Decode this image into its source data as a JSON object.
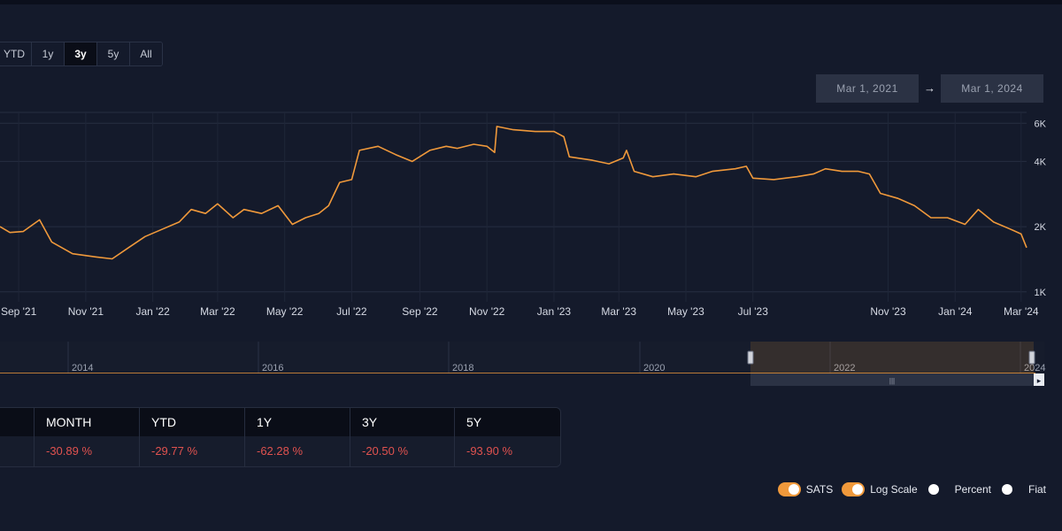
{
  "range_buttons": [
    "YTD",
    "1y",
    "3y",
    "5y",
    "All"
  ],
  "range_active": "3y",
  "date_range": {
    "from": "Mar 1, 2021",
    "arrow": "→",
    "to": "Mar 1, 2024"
  },
  "chart_data": {
    "type": "line",
    "y_scale": "log",
    "ylim": [
      900,
      6800
    ],
    "y_ticks": [
      {
        "value": 1000,
        "label": "1K"
      },
      {
        "value": 2000,
        "label": "2K"
      },
      {
        "value": 4000,
        "label": "4K"
      },
      {
        "value": 6000,
        "label": "6K"
      }
    ],
    "x_range": [
      "2021-08-15",
      "2024-03-06"
    ],
    "x_ticks": [
      {
        "date": "2021-09-01",
        "label": "Sep '21"
      },
      {
        "date": "2021-11-01",
        "label": "Nov '21"
      },
      {
        "date": "2022-01-01",
        "label": "Jan '22"
      },
      {
        "date": "2022-03-01",
        "label": "Mar '22"
      },
      {
        "date": "2022-05-01",
        "label": "May '22"
      },
      {
        "date": "2022-07-01",
        "label": "Jul '22"
      },
      {
        "date": "2022-09-01",
        "label": "Sep '22"
      },
      {
        "date": "2022-11-01",
        "label": "Nov '22"
      },
      {
        "date": "2023-01-01",
        "label": "Jan '23"
      },
      {
        "date": "2023-03-01",
        "label": "Mar '23"
      },
      {
        "date": "2023-05-01",
        "label": "May '23"
      },
      {
        "date": "2023-07-01",
        "label": "Jul '23"
      },
      {
        "date": "2023-11-01",
        "label": "Nov '23"
      },
      {
        "date": "2024-01-01",
        "label": "Jan '24"
      },
      {
        "date": "2024-03-01",
        "label": "Mar '24"
      }
    ],
    "series": [
      {
        "color": "#f0993b",
        "points": [
          [
            "2021-08-15",
            2000
          ],
          [
            "2021-08-24",
            1880
          ],
          [
            "2021-09-05",
            1900
          ],
          [
            "2021-09-20",
            2150
          ],
          [
            "2021-10-01",
            1700
          ],
          [
            "2021-10-20",
            1500
          ],
          [
            "2021-11-10",
            1450
          ],
          [
            "2021-11-25",
            1420
          ],
          [
            "2021-12-10",
            1600
          ],
          [
            "2021-12-25",
            1800
          ],
          [
            "2022-01-10",
            1950
          ],
          [
            "2022-01-25",
            2100
          ],
          [
            "2022-02-05",
            2400
          ],
          [
            "2022-02-18",
            2300
          ],
          [
            "2022-03-01",
            2550
          ],
          [
            "2022-03-15",
            2200
          ],
          [
            "2022-03-25",
            2400
          ],
          [
            "2022-04-10",
            2300
          ],
          [
            "2022-04-25",
            2500
          ],
          [
            "2022-05-08",
            2050
          ],
          [
            "2022-05-20",
            2200
          ],
          [
            "2022-06-01",
            2300
          ],
          [
            "2022-06-10",
            2500
          ],
          [
            "2022-06-20",
            3200
          ],
          [
            "2022-07-01",
            3300
          ],
          [
            "2022-07-08",
            4500
          ],
          [
            "2022-07-25",
            4700
          ],
          [
            "2022-08-10",
            4300
          ],
          [
            "2022-08-25",
            4000
          ],
          [
            "2022-09-10",
            4500
          ],
          [
            "2022-09-25",
            4700
          ],
          [
            "2022-10-05",
            4600
          ],
          [
            "2022-10-20",
            4800
          ],
          [
            "2022-11-01",
            4700
          ],
          [
            "2022-11-08",
            4400
          ],
          [
            "2022-11-10",
            5800
          ],
          [
            "2022-11-25",
            5600
          ],
          [
            "2022-12-15",
            5500
          ],
          [
            "2023-01-01",
            5500
          ],
          [
            "2023-01-10",
            5200
          ],
          [
            "2023-01-15",
            4200
          ],
          [
            "2023-02-05",
            4050
          ],
          [
            "2023-02-20",
            3900
          ],
          [
            "2023-03-05",
            4150
          ],
          [
            "2023-03-08",
            4500
          ],
          [
            "2023-03-15",
            3600
          ],
          [
            "2023-04-01",
            3400
          ],
          [
            "2023-04-20",
            3500
          ],
          [
            "2023-05-10",
            3400
          ],
          [
            "2023-05-25",
            3600
          ],
          [
            "2023-06-15",
            3700
          ],
          [
            "2023-06-25",
            3800
          ],
          [
            "2023-07-01",
            3350
          ],
          [
            "2023-07-20",
            3300
          ],
          [
            "2023-08-10",
            3400
          ],
          [
            "2023-08-25",
            3500
          ],
          [
            "2023-09-05",
            3700
          ],
          [
            "2023-09-20",
            3600
          ],
          [
            "2023-10-05",
            3600
          ],
          [
            "2023-10-15",
            3500
          ],
          [
            "2023-10-25",
            2850
          ],
          [
            "2023-11-10",
            2700
          ],
          [
            "2023-11-25",
            2500
          ],
          [
            "2023-12-10",
            2200
          ],
          [
            "2023-12-25",
            2200
          ],
          [
            "2024-01-10",
            2050
          ],
          [
            "2024-01-22",
            2400
          ],
          [
            "2024-02-05",
            2100
          ],
          [
            "2024-02-20",
            1950
          ],
          [
            "2024-03-01",
            1850
          ],
          [
            "2024-03-06",
            1600
          ]
        ]
      }
    ]
  },
  "navigator": {
    "year_labels": [
      "2014",
      "2016",
      "2018",
      "2020",
      "2022",
      "2024"
    ],
    "handle_glyph": "|||",
    "scroll_glyph": "▸"
  },
  "performance": {
    "headers": [
      "",
      "MONTH",
      "YTD",
      "1Y",
      "3Y",
      "5Y"
    ],
    "values": [
      "",
      "-30.89 %",
      "-29.77 %",
      "-62.28 %",
      "-20.50 %",
      "-93.90 %"
    ]
  },
  "toggles": [
    {
      "label": "SATS",
      "on": true
    },
    {
      "label": "Log Scale",
      "on": true
    },
    {
      "label": "Percent",
      "on": false
    },
    {
      "label": "Fiat",
      "on": false
    }
  ],
  "colors": {
    "accent": "#f0993b",
    "negative": "#e0524f",
    "background": "#141a2b"
  }
}
